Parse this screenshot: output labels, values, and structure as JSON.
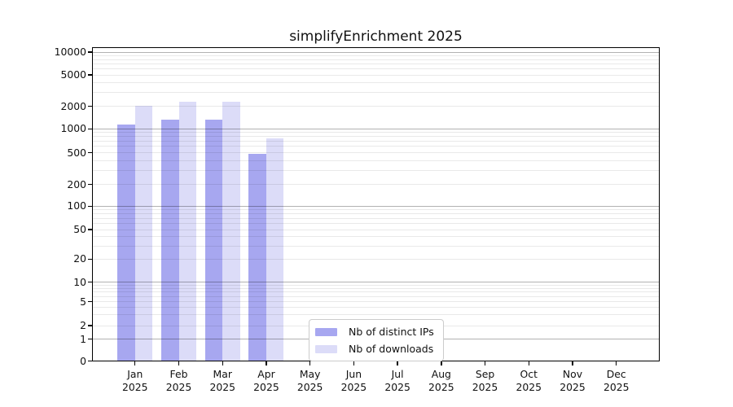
{
  "figure": {
    "title": "simplifyEnrichment 2025"
  },
  "chart_data": {
    "type": "bar",
    "title": "simplifyEnrichment 2025",
    "categories": [
      "Jan 2025",
      "Feb 2025",
      "Mar 2025",
      "Apr 2025",
      "May 2025",
      "Jun 2025",
      "Jul 2025",
      "Aug 2025",
      "Sep 2025",
      "Oct 2025",
      "Nov 2025",
      "Dec 2025"
    ],
    "series": [
      {
        "name": "Nb of distinct IPs",
        "color": "#a7a7f0",
        "values": [
          1150,
          1320,
          1320,
          490,
          0,
          0,
          0,
          0,
          0,
          0,
          0,
          0
        ]
      },
      {
        "name": "Nb of downloads",
        "color": "#dcdcf8",
        "values": [
          2050,
          2300,
          2280,
          760,
          0,
          0,
          0,
          0,
          0,
          0,
          0,
          0
        ]
      }
    ],
    "xlabel": "",
    "ylabel": "",
    "yscale": "log-like (0,1,2,5,10,20,50,100,200,500,1000,2000,5000,10000)",
    "y_ticks": [
      0,
      1,
      2,
      5,
      10,
      20,
      50,
      100,
      200,
      500,
      1000,
      2000,
      5000,
      10000
    ],
    "ylim": [
      0,
      10000
    ],
    "grid": "horizontal major (powers of 10, darker) + minor (light), drawn over bars",
    "legend_position": "inside bottom-center",
    "bar_layout": "paired bars per month, series1 left of tick, series2 right of tick"
  }
}
